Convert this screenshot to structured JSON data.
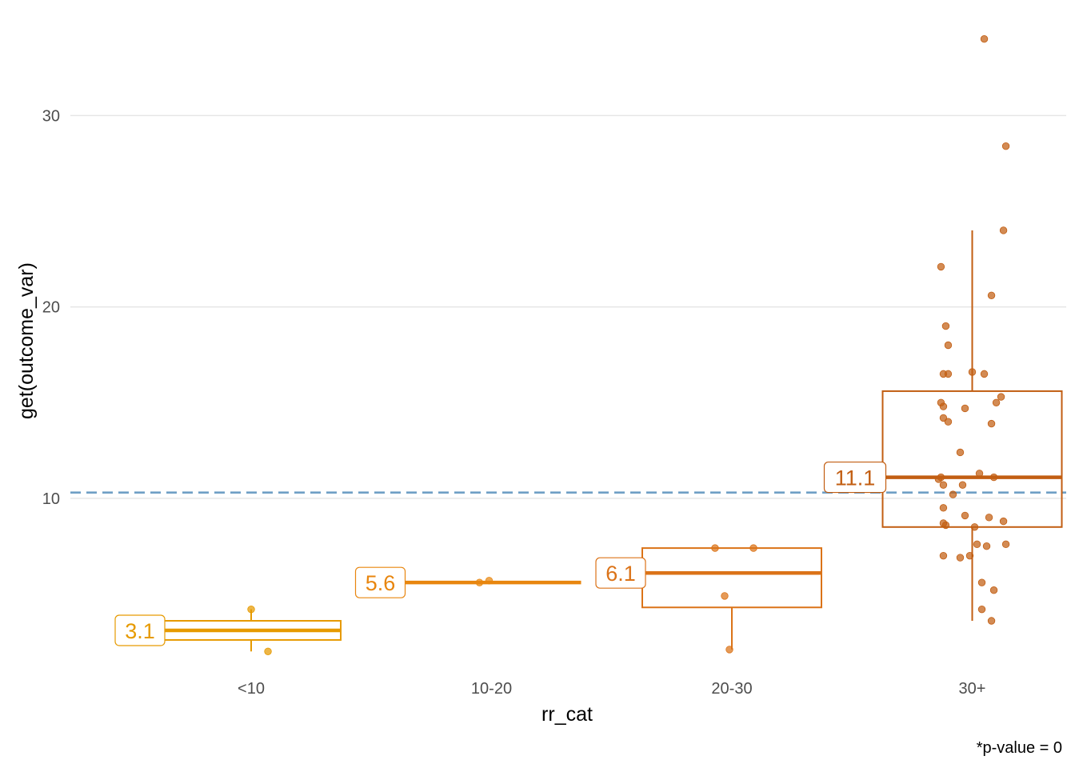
{
  "chart_data": {
    "type": "boxplot",
    "title": "",
    "xlabel": "rr_cat",
    "ylabel": "get(outcome_var)",
    "caption": "*p-value = 0",
    "ylim": [
      0.8,
      35.2
    ],
    "yticks": [
      10,
      20,
      30
    ],
    "grid": "horizontal major",
    "legend": "none",
    "reference_line": {
      "y": 10.3,
      "style": "dashed",
      "color": "#6f9fc5"
    },
    "categories": [
      "<10",
      "10-20",
      "20-30",
      "30+"
    ],
    "groups": [
      {
        "category": "<10",
        "color": "#e69a00",
        "median_label": "3.1",
        "stats": {
          "min": 2.0,
          "q1": 2.6,
          "median": 3.1,
          "q3": 3.6,
          "max": 4.2
        },
        "points": [
          [
            -0.0,
            4.2
          ],
          [
            0.07,
            2.0
          ]
        ]
      },
      {
        "category": "10-20",
        "color": "#e8860f",
        "median_label": "5.6",
        "stats": {
          "min": 5.6,
          "q1": 5.6,
          "median": 5.6,
          "q3": 5.6,
          "max": 5.6
        },
        "points": [
          [
            -0.05,
            5.6
          ],
          [
            -0.01,
            5.7
          ]
        ]
      },
      {
        "category": "20-30",
        "color": "#db7318",
        "median_label": "6.1",
        "stats": {
          "min": 2.1,
          "q1": 4.3,
          "median": 6.1,
          "q3": 7.4,
          "max": 7.4
        },
        "points": [
          [
            -0.07,
            7.4
          ],
          [
            0.09,
            7.4
          ],
          [
            -0.03,
            4.9
          ],
          [
            -0.01,
            2.1
          ]
        ]
      },
      {
        "category": "30+",
        "color": "#c25e12",
        "median_label": "11.1",
        "stats": {
          "min": 3.6,
          "q1": 8.5,
          "median": 11.1,
          "q3": 15.6,
          "max": 24.0
        },
        "points": [
          [
            0.05,
            34.0
          ],
          [
            0.14,
            28.4
          ],
          [
            0.13,
            24.0
          ],
          [
            -0.13,
            22.1
          ],
          [
            0.08,
            20.6
          ],
          [
            -0.11,
            19.0
          ],
          [
            -0.1,
            18.0
          ],
          [
            -0.12,
            16.5
          ],
          [
            -0.1,
            16.5
          ],
          [
            0.0,
            16.6
          ],
          [
            0.05,
            16.5
          ],
          [
            0.12,
            15.3
          ],
          [
            0.1,
            15.0
          ],
          [
            -0.13,
            15.0
          ],
          [
            -0.12,
            14.8
          ],
          [
            -0.03,
            14.7
          ],
          [
            -0.12,
            14.2
          ],
          [
            -0.1,
            14.0
          ],
          [
            0.08,
            13.9
          ],
          [
            -0.05,
            12.4
          ],
          [
            0.03,
            11.3
          ],
          [
            0.09,
            11.1
          ],
          [
            -0.13,
            11.1
          ],
          [
            -0.14,
            11.0
          ],
          [
            -0.12,
            10.7
          ],
          [
            -0.04,
            10.7
          ],
          [
            -0.08,
            10.2
          ],
          [
            -0.12,
            9.5
          ],
          [
            -0.03,
            9.1
          ],
          [
            0.07,
            9.0
          ],
          [
            0.13,
            8.8
          ],
          [
            -0.12,
            8.7
          ],
          [
            -0.11,
            8.6
          ],
          [
            0.01,
            8.5
          ],
          [
            0.02,
            7.6
          ],
          [
            0.06,
            7.5
          ],
          [
            0.14,
            7.6
          ],
          [
            -0.12,
            7.0
          ],
          [
            -0.05,
            6.9
          ],
          [
            -0.01,
            7.0
          ],
          [
            0.04,
            5.6
          ],
          [
            0.09,
            5.2
          ],
          [
            0.04,
            4.2
          ],
          [
            0.08,
            3.6
          ]
        ]
      }
    ]
  }
}
